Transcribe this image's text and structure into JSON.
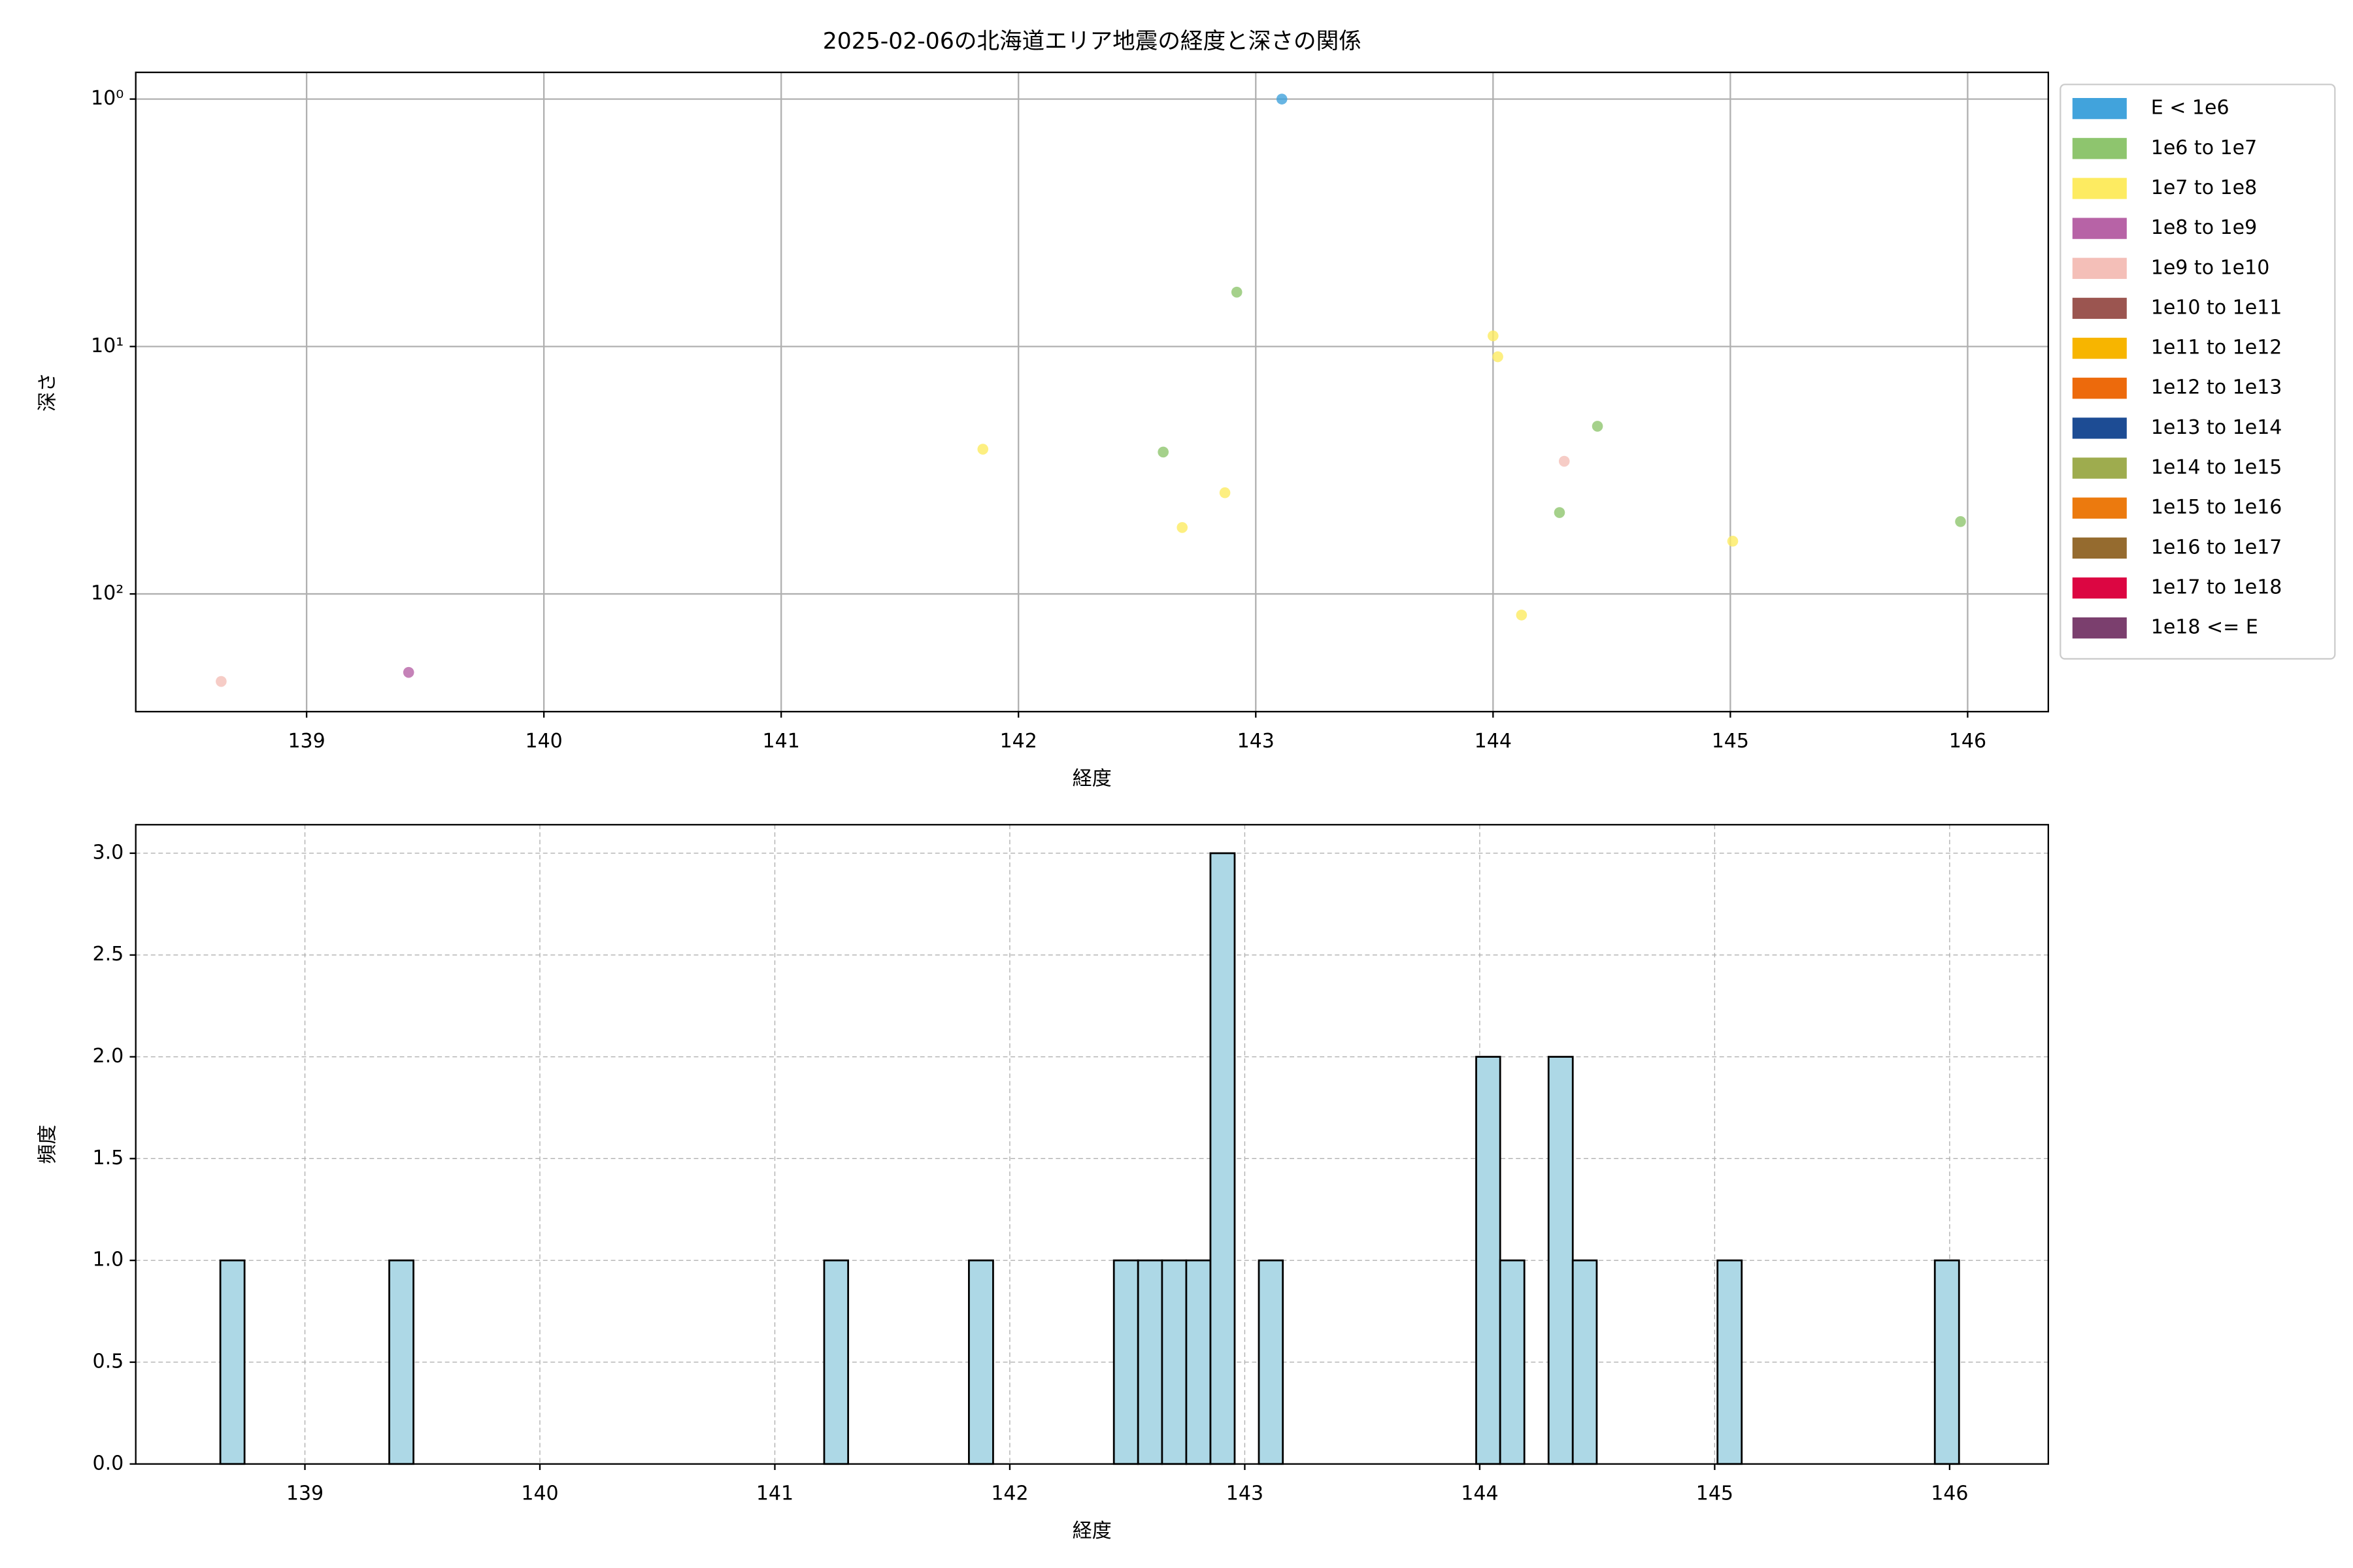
{
  "chart_data": [
    {
      "type": "scatter",
      "title": "2025-02-06の北海道エリア地震の経度と深さの関係",
      "xlabel": "経度",
      "ylabel": "深さ",
      "xlim": [
        138.28,
        146.34
      ],
      "xticks": [
        139,
        140,
        141,
        142,
        143,
        144,
        145,
        146
      ],
      "ylim": [
        299,
        0.78
      ],
      "yscale": "log",
      "yticks": [
        {
          "value": 1,
          "label": "10⁰"
        },
        {
          "value": 10,
          "label": "10¹"
        },
        {
          "value": 100,
          "label": "10²"
        }
      ],
      "grid": true,
      "legend": "right",
      "series": [
        {
          "name": "E < 1e6",
          "color": "#41a3dc",
          "x": [
            143.11
          ],
          "values": [
            1.0
          ]
        },
        {
          "name": "1e6 to 1e7",
          "color": "#8ec56e",
          "x": [
            142.92,
            142.61,
            144.44,
            144.28,
            145.97
          ],
          "values": [
            6.03,
            26.7,
            21.0,
            46.9,
            51.0
          ]
        },
        {
          "name": "1e7 to 1e8",
          "color": "#fdeb61",
          "x": [
            144.0,
            144.02,
            141.85,
            142.87,
            142.69,
            145.01,
            144.12
          ],
          "values": [
            9.06,
            11.0,
            26.0,
            39.0,
            53.9,
            61.2,
            121.7
          ]
        },
        {
          "name": "1e8 to 1e9",
          "color": "#b763a6",
          "x": [
            139.43
          ],
          "values": [
            207.5
          ]
        },
        {
          "name": "1e9 to 1e10",
          "color": "#f4bfb8",
          "x": [
            144.3,
            138.64
          ],
          "values": [
            29.1,
            225.8
          ]
        },
        {
          "name": "1e10 to 1e11",
          "color": "#9b5550",
          "x": [],
          "values": []
        },
        {
          "name": "1e11 to 1e12",
          "color": "#f7b500",
          "x": [],
          "values": []
        },
        {
          "name": "1e12 to 1e13",
          "color": "#ed6a0c",
          "x": [],
          "values": []
        },
        {
          "name": "1e13 to 1e14",
          "color": "#1d4c94",
          "x": [],
          "values": []
        },
        {
          "name": "1e14 to 1e15",
          "color": "#9eac4e",
          "x": [],
          "values": []
        },
        {
          "name": "1e15 to 1e16",
          "color": "#ec7a0e",
          "x": [],
          "values": []
        },
        {
          "name": "1e16 to 1e17",
          "color": "#956b2f",
          "x": [],
          "values": []
        },
        {
          "name": "1e17 to 1e18",
          "color": "#dc0642",
          "x": [],
          "values": []
        },
        {
          "name": "1e18 <= E",
          "color": "#7b3f6e",
          "x": [],
          "values": []
        }
      ]
    },
    {
      "type": "histogram",
      "xlabel": "経度",
      "ylabel": "頻度",
      "xlim": [
        138.28,
        146.42
      ],
      "xticks": [
        139,
        140,
        141,
        142,
        143,
        144,
        145,
        146
      ],
      "ylim": [
        0,
        3.14
      ],
      "yticks": [
        {
          "value": 0,
          "label": "0.0"
        },
        {
          "value": 0.5,
          "label": "0.5"
        },
        {
          "value": 1,
          "label": "1.0"
        },
        {
          "value": 1.5,
          "label": "1.5"
        },
        {
          "value": 2,
          "label": "2.0"
        },
        {
          "value": 2.5,
          "label": "2.5"
        },
        {
          "value": 3,
          "label": "3.0"
        }
      ],
      "grid": true,
      "grid_style": "dashed",
      "color": "#add8e6",
      "edge_color": "#000000",
      "bins": [
        138.64,
        138.743,
        138.846,
        138.948,
        139.051,
        139.154,
        139.257,
        139.359,
        139.462,
        139.565,
        139.668,
        139.771,
        139.873,
        139.976,
        140.079,
        140.182,
        140.284,
        140.387,
        140.49,
        140.593,
        140.696,
        140.798,
        140.901,
        141.004,
        141.107,
        141.21,
        141.312,
        141.415,
        141.518,
        141.621,
        141.723,
        141.826,
        141.929,
        142.032,
        142.135,
        142.237,
        142.34,
        142.443,
        142.546,
        142.648,
        142.751,
        142.854,
        142.957,
        143.06,
        143.162,
        143.265,
        143.368,
        143.471,
        143.573,
        143.676,
        143.779,
        143.882,
        143.985,
        144.087,
        144.19,
        144.293,
        144.396,
        144.498,
        144.601,
        144.704,
        144.807,
        144.91,
        145.012,
        145.115,
        145.218,
        145.321,
        145.423,
        145.526,
        145.629,
        145.732,
        145.835,
        145.937,
        146.04
      ],
      "values": [
        1,
        0,
        0,
        0,
        0,
        0,
        0,
        1,
        0,
        0,
        0,
        0,
        0,
        0,
        0,
        0,
        0,
        0,
        0,
        0,
        0,
        0,
        0,
        0,
        0,
        1,
        0,
        0,
        0,
        0,
        0,
        1,
        0,
        0,
        0,
        0,
        0,
        1,
        1,
        1,
        1,
        3,
        0,
        1,
        0,
        0,
        0,
        0,
        0,
        0,
        0,
        0,
        2,
        1,
        0,
        2,
        1,
        0,
        0,
        0,
        0,
        0,
        1,
        0,
        0,
        0,
        0,
        0,
        0,
        0,
        0,
        1
      ]
    }
  ]
}
